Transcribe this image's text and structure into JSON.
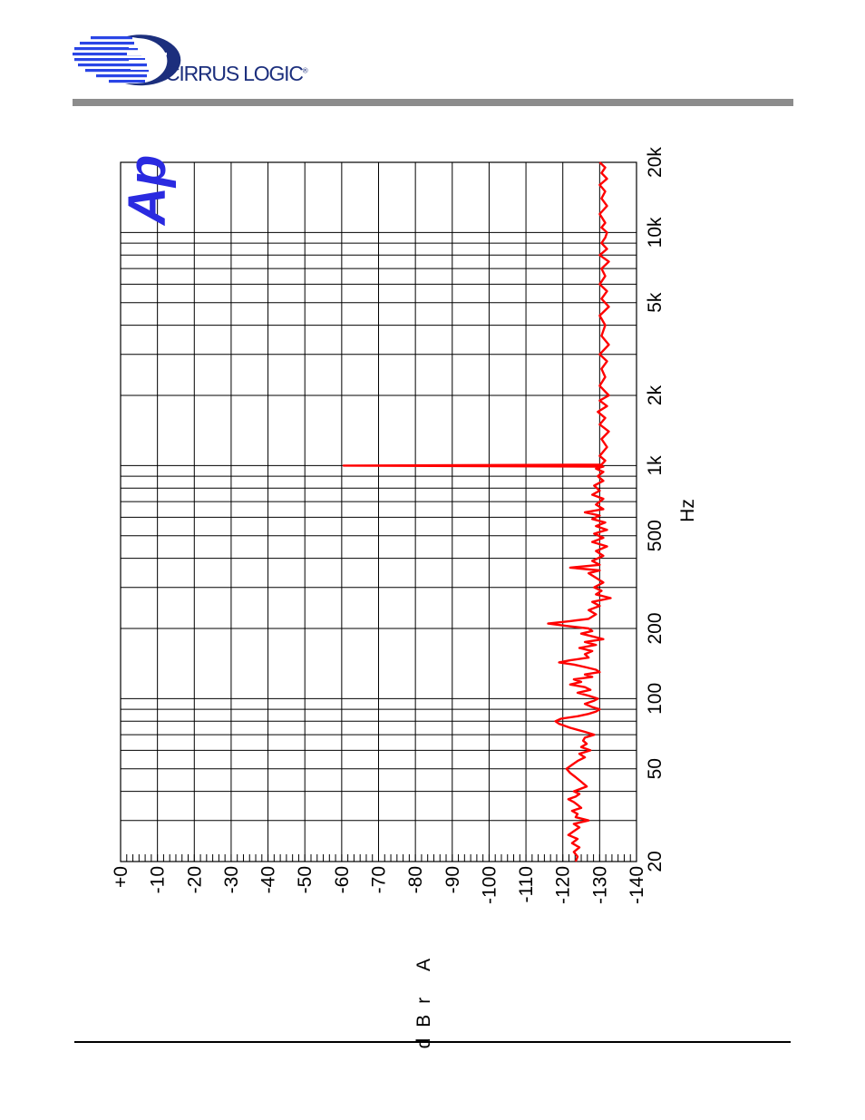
{
  "brand": {
    "name": "CIRRUS LOGIC",
    "colors": {
      "primary": "#1c2f7d",
      "accent": "#2a45e6",
      "rule": "#8c8c8c"
    }
  },
  "watermark": {
    "text": "Ap",
    "color": "#2a2ae0"
  },
  "chart_data": {
    "type": "line",
    "xlabel": "Hz",
    "ylabel": "dBr A",
    "x_scale": "log",
    "xlim": [
      20,
      20000
    ],
    "ylim": [
      -140,
      0
    ],
    "grid": true,
    "orientation": "rotated-90-ccw",
    "x_ticks": [
      {
        "value": 20,
        "label": "20"
      },
      {
        "value": 50,
        "label": "50"
      },
      {
        "value": 100,
        "label": "100"
      },
      {
        "value": 200,
        "label": "200"
      },
      {
        "value": 500,
        "label": "500"
      },
      {
        "value": 1000,
        "label": "1k"
      },
      {
        "value": 2000,
        "label": "2k"
      },
      {
        "value": 5000,
        "label": "5k"
      },
      {
        "value": 10000,
        "label": "10k"
      },
      {
        "value": 20000,
        "label": "20k"
      }
    ],
    "y_ticks": [
      {
        "value": 0,
        "label": "+0"
      },
      {
        "value": -10,
        "label": "-10"
      },
      {
        "value": -20,
        "label": "-20"
      },
      {
        "value": -30,
        "label": "-30"
      },
      {
        "value": -40,
        "label": "-40"
      },
      {
        "value": -50,
        "label": "-50"
      },
      {
        "value": -60,
        "label": "-60"
      },
      {
        "value": -70,
        "label": "-70"
      },
      {
        "value": -80,
        "label": "-80"
      },
      {
        "value": -90,
        "label": "-90"
      },
      {
        "value": -100,
        "label": "-100"
      },
      {
        "value": -110,
        "label": "-110"
      },
      {
        "value": -120,
        "label": "-120"
      },
      {
        "value": -130,
        "label": "-130"
      },
      {
        "value": -140,
        "label": "-140"
      }
    ],
    "series": [
      {
        "color": "#ff0000",
        "points": [
          [
            20,
            -123.5
          ],
          [
            21,
            -124.0
          ],
          [
            22,
            -123.0
          ],
          [
            23,
            -124.5
          ],
          [
            24,
            -122.5
          ],
          [
            25,
            -124.0
          ],
          [
            26,
            -121.5
          ],
          [
            27,
            -123.0
          ],
          [
            28,
            -124.5
          ],
          [
            29,
            -123.0
          ],
          [
            30,
            -127.0
          ],
          [
            31,
            -123.5
          ],
          [
            32,
            -124.0
          ],
          [
            33,
            -122.5
          ],
          [
            34,
            -125.0
          ],
          [
            35,
            -124.0
          ],
          [
            36,
            -123.0
          ],
          [
            37,
            -121.5
          ],
          [
            38,
            -123.5
          ],
          [
            39,
            -124.5
          ],
          [
            40,
            -123.0
          ],
          [
            42,
            -126.5
          ],
          [
            44,
            -125.0
          ],
          [
            46,
            -123.5
          ],
          [
            48,
            -122.0
          ],
          [
            50,
            -121.0
          ],
          [
            52,
            -122.5
          ],
          [
            54,
            -124.0
          ],
          [
            56,
            -126.0
          ],
          [
            58,
            -124.5
          ],
          [
            60,
            -127.5
          ],
          [
            62,
            -125.0
          ],
          [
            64,
            -126.5
          ],
          [
            66,
            -125.5
          ],
          [
            68,
            -126.0
          ],
          [
            70,
            -128.5
          ],
          [
            72,
            -126.0
          ],
          [
            75,
            -122.0
          ],
          [
            78,
            -119.0
          ],
          [
            80,
            -118.0
          ],
          [
            82,
            -119.5
          ],
          [
            84,
            -124.0
          ],
          [
            86,
            -127.0
          ],
          [
            88,
            -129.0
          ],
          [
            90,
            -130.0
          ],
          [
            92,
            -128.0
          ],
          [
            95,
            -126.0
          ],
          [
            98,
            -128.5
          ],
          [
            100,
            -129.5
          ],
          [
            103,
            -127.0
          ],
          [
            106,
            -124.0
          ],
          [
            109,
            -127.5
          ],
          [
            112,
            -126.0
          ],
          [
            115,
            -122.0
          ],
          [
            118,
            -125.0
          ],
          [
            121,
            -123.0
          ],
          [
            124,
            -128.0
          ],
          [
            127,
            -126.0
          ],
          [
            130,
            -130.0
          ],
          [
            133,
            -129.0
          ],
          [
            136,
            -126.5
          ],
          [
            140,
            -123.0
          ],
          [
            143,
            -119.0
          ],
          [
            146,
            -122.0
          ],
          [
            150,
            -127.0
          ],
          [
            155,
            -126.0
          ],
          [
            160,
            -128.0
          ],
          [
            165,
            -124.5
          ],
          [
            170,
            -129.0
          ],
          [
            175,
            -126.0
          ],
          [
            180,
            -131.0
          ],
          [
            185,
            -128.0
          ],
          [
            190,
            -125.0
          ],
          [
            195,
            -128.0
          ],
          [
            200,
            -127.0
          ],
          [
            205,
            -121.0
          ],
          [
            210,
            -116.0
          ],
          [
            215,
            -122.0
          ],
          [
            220,
            -127.0
          ],
          [
            230,
            -129.0
          ],
          [
            240,
            -127.0
          ],
          [
            250,
            -130.0
          ],
          [
            260,
            -128.0
          ],
          [
            270,
            -133.0
          ],
          [
            280,
            -129.0
          ],
          [
            290,
            -130.5
          ],
          [
            300,
            -128.5
          ],
          [
            315,
            -131.0
          ],
          [
            330,
            -129.0
          ],
          [
            345,
            -127.0
          ],
          [
            355,
            -130.0
          ],
          [
            365,
            -122.0
          ],
          [
            375,
            -130.0
          ],
          [
            390,
            -128.0
          ],
          [
            410,
            -131.0
          ],
          [
            430,
            -129.0
          ],
          [
            450,
            -132.0
          ],
          [
            470,
            -128.0
          ],
          [
            490,
            -131.0
          ],
          [
            510,
            -128.5
          ],
          [
            530,
            -132.0
          ],
          [
            550,
            -129.0
          ],
          [
            570,
            -131.5
          ],
          [
            590,
            -128.0
          ],
          [
            610,
            -130.0
          ],
          [
            630,
            -126.0
          ],
          [
            650,
            -131.0
          ],
          [
            680,
            -129.0
          ],
          [
            720,
            -131.0
          ],
          [
            750,
            -128.0
          ],
          [
            780,
            -130.0
          ],
          [
            820,
            -128.5
          ],
          [
            860,
            -131.0
          ],
          [
            900,
            -129.5
          ],
          [
            940,
            -131.0
          ],
          [
            970,
            -129.0
          ],
          [
            990,
            -131.0
          ],
          [
            1000,
            -60.5
          ],
          [
            1010,
            -130.5
          ],
          [
            1050,
            -131.5
          ],
          [
            1100,
            -130.0
          ],
          [
            1200,
            -132.0
          ],
          [
            1300,
            -130.5
          ],
          [
            1400,
            -132.5
          ],
          [
            1500,
            -130.0
          ],
          [
            1600,
            -131.5
          ],
          [
            1700,
            -129.5
          ],
          [
            1800,
            -132.0
          ],
          [
            1900,
            -130.0
          ],
          [
            2000,
            -132.5
          ],
          [
            2200,
            -130.0
          ],
          [
            2400,
            -131.5
          ],
          [
            2600,
            -130.5
          ],
          [
            2800,
            -132.0
          ],
          [
            3000,
            -130.0
          ],
          [
            3300,
            -132.5
          ],
          [
            3600,
            -130.5
          ],
          [
            4000,
            -131.5
          ],
          [
            4400,
            -130.0
          ],
          [
            4800,
            -132.5
          ],
          [
            5200,
            -130.5
          ],
          [
            5600,
            -132.0
          ],
          [
            6000,
            -130.0
          ],
          [
            6500,
            -131.5
          ],
          [
            7000,
            -130.5
          ],
          [
            7500,
            -132.5
          ],
          [
            8000,
            -130.0
          ],
          [
            8500,
            -132.0
          ],
          [
            9000,
            -130.5
          ],
          [
            9500,
            -131.5
          ],
          [
            10000,
            -132.0
          ],
          [
            10500,
            -130.5
          ],
          [
            11000,
            -131.5
          ],
          [
            12000,
            -130.0
          ],
          [
            13000,
            -132.0
          ],
          [
            14000,
            -130.5
          ],
          [
            15000,
            -131.5
          ],
          [
            16000,
            -130.0
          ],
          [
            17000,
            -132.0
          ],
          [
            18000,
            -130.5
          ],
          [
            19000,
            -131.5
          ],
          [
            20000,
            -130.0
          ]
        ]
      }
    ]
  }
}
